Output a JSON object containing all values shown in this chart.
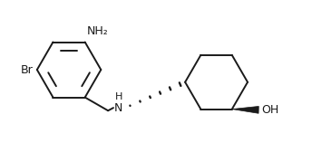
{
  "bg_color": "#ffffff",
  "line_color": "#1a1a1a",
  "line_width": 1.4,
  "font_size": 9,
  "NH2_label": "NH₂",
  "Br_label": "Br",
  "NH_label": "H\nN",
  "OH_label": "OH"
}
